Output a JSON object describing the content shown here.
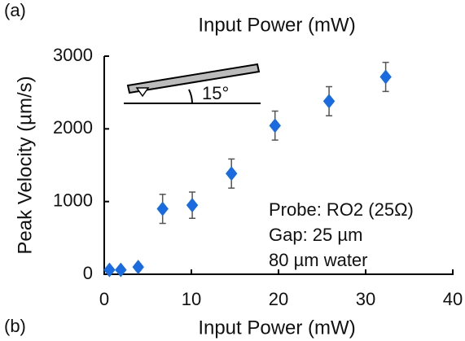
{
  "chart_data": {
    "type": "scatter",
    "above_panel_label": "(a)",
    "above_xlabel": "Input Power (mW)",
    "panel_label": "(b)",
    "xlabel": "Input Power (mW)",
    "ylabel": "Peak Velocity (µm/s)",
    "x": [
      0.6,
      1.9,
      3.9,
      6.7,
      10.1,
      14.6,
      19.6,
      25.8,
      32.3
    ],
    "values": [
      60,
      60,
      100,
      900,
      950,
      1385,
      2045,
      2380,
      2715
    ],
    "errors": [
      30,
      30,
      40,
      200,
      180,
      200,
      200,
      200,
      200
    ],
    "color": "#1a6be0",
    "error_color": "#555555",
    "xlim": [
      0,
      40
    ],
    "ylim": [
      0,
      3000
    ],
    "xticks": [
      0,
      10,
      20,
      30,
      40
    ],
    "yticks": [
      0,
      1000,
      2000,
      3000
    ],
    "annotations": [
      "Probe: RO2 (25Ω)",
      "Gap: 25 µm",
      "80 µm water"
    ],
    "inset_angle_label": "15°"
  }
}
